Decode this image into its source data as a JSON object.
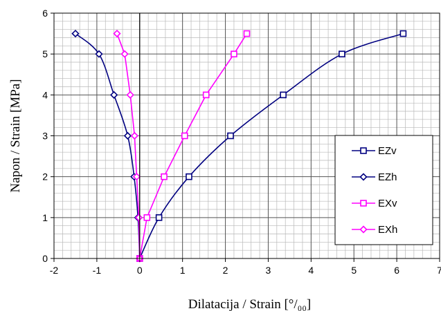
{
  "chart_data": {
    "type": "scatter",
    "xlabel": "Dilatacija / Strain  [°/₀₀]",
    "ylabel": "Napon / Strain  [MPa]",
    "xlim": [
      -2,
      7
    ],
    "ylim": [
      0,
      6
    ],
    "x_ticks": [
      "-2",
      "-1",
      "0",
      "1",
      "2",
      "3",
      "4",
      "5",
      "6",
      "7"
    ],
    "y_ticks": [
      "0",
      "1",
      "2",
      "3",
      "4",
      "5",
      "6"
    ],
    "grid": true,
    "minor_grid": true,
    "legend_position": "bottom-right",
    "series": [
      {
        "name": "EZv",
        "color": "#000080",
        "marker": "square",
        "line": "smooth",
        "points": [
          [
            0,
            0
          ],
          [
            0.45,
            1
          ],
          [
            1.15,
            2
          ],
          [
            2.12,
            3
          ],
          [
            3.35,
            4
          ],
          [
            4.72,
            5
          ],
          [
            6.15,
            5.5
          ]
        ]
      },
      {
        "name": "EZh",
        "color": "#000080",
        "marker": "diamond",
        "line": "smooth",
        "points": [
          [
            0,
            0
          ],
          [
            -0.04,
            1
          ],
          [
            -0.13,
            2
          ],
          [
            -0.28,
            3
          ],
          [
            -0.6,
            4
          ],
          [
            -0.95,
            5
          ],
          [
            -1.5,
            5.5
          ]
        ]
      },
      {
        "name": "EXv",
        "color": "#FF00FF",
        "marker": "square",
        "line": "straight",
        "points": [
          [
            0,
            0
          ],
          [
            0.17,
            1
          ],
          [
            0.57,
            2
          ],
          [
            1.05,
            3
          ],
          [
            1.55,
            4
          ],
          [
            2.2,
            5
          ],
          [
            2.5,
            5.5
          ]
        ]
      },
      {
        "name": "EXh",
        "color": "#FF00FF",
        "marker": "diamond",
        "line": "straight",
        "points": [
          [
            0,
            0
          ],
          [
            -0.02,
            1
          ],
          [
            -0.07,
            2
          ],
          [
            -0.12,
            3
          ],
          [
            -0.22,
            4
          ],
          [
            -0.35,
            5
          ],
          [
            -0.53,
            5.5
          ]
        ]
      }
    ]
  }
}
